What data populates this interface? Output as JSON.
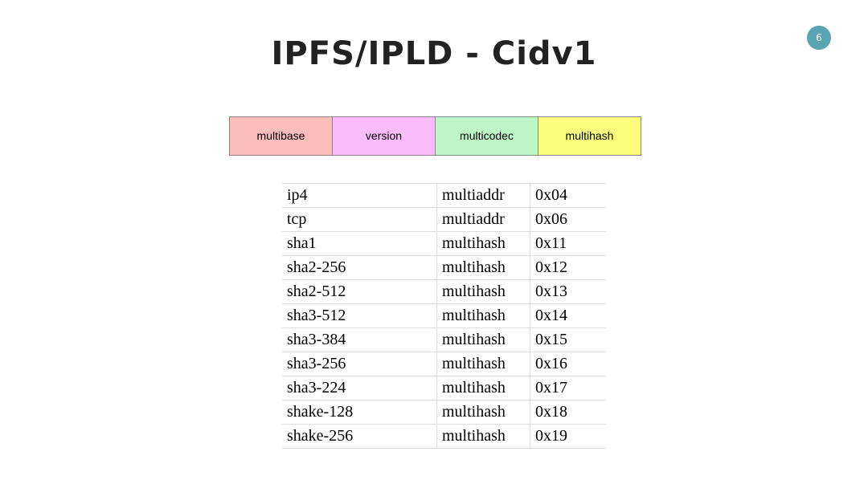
{
  "header": {
    "title": "IPFS/IPLD - Cidv1",
    "page_number": "6"
  },
  "cid_parts": [
    "multibase",
    "version",
    "multicodec",
    "multihash"
  ],
  "table": {
    "rows": [
      [
        "ip4",
        "multiaddr",
        "0x04"
      ],
      [
        "tcp",
        "multiaddr",
        "0x06"
      ],
      [
        "sha1",
        "multihash",
        "0x11"
      ],
      [
        "sha2-256",
        "multihash",
        "0x12"
      ],
      [
        "sha2-512",
        "multihash",
        "0x13"
      ],
      [
        "sha3-512",
        "multihash",
        "0x14"
      ],
      [
        "sha3-384",
        "multihash",
        "0x15"
      ],
      [
        "sha3-256",
        "multihash",
        "0x16"
      ],
      [
        "sha3-224",
        "multihash",
        "0x17"
      ],
      [
        "shake-128",
        "multihash",
        "0x18"
      ],
      [
        "shake-256",
        "multihash",
        "0x19"
      ]
    ]
  }
}
